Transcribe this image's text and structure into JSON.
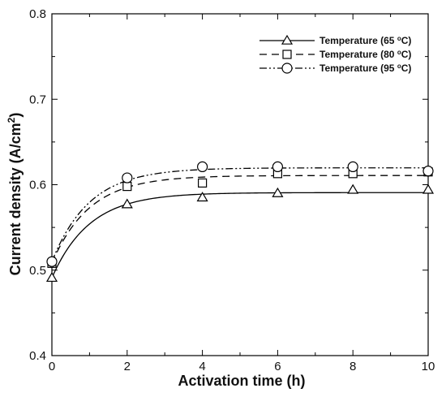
{
  "chart_data": {
    "type": "line",
    "title": "",
    "xlabel": "Activation time (h)",
    "ylabel": "Current density (A/cm",
    "ylabel_sup": "2",
    "ylabel_suffix": ")",
    "xlim": [
      0,
      10
    ],
    "ylim": [
      0.4,
      0.8
    ],
    "x_ticks": [
      "0",
      "2",
      "4",
      "6",
      "8",
      "10"
    ],
    "y_ticks": [
      "0.4",
      "0.5",
      "0.6",
      "0.7",
      "0.8"
    ],
    "grid": false,
    "legend_position": "top-right",
    "x": [
      0,
      2,
      4,
      6,
      8,
      10
    ],
    "series": [
      {
        "name": "Temperature (65 °C)",
        "legend_prefix": "Temperature (65 ",
        "legend_sup": "o",
        "legend_suffix": "C)",
        "marker": "triangle",
        "line_style": "solid",
        "values": [
          0.491,
          0.577,
          0.585,
          0.59,
          0.594,
          0.594
        ]
      },
      {
        "name": "Temperature (80 °C)",
        "legend_prefix": "Temperature (80 ",
        "legend_sup": "o",
        "legend_suffix": "C)",
        "marker": "square",
        "line_style": "dashed",
        "values": [
          0.508,
          0.598,
          0.602,
          0.613,
          0.613,
          0.615
        ]
      },
      {
        "name": "Temperature (95 °C)",
        "legend_prefix": "Temperature (95 ",
        "legend_sup": "o",
        "legend_suffix": "C)",
        "marker": "circle",
        "line_style": "dash-dot-dot",
        "values": [
          0.51,
          0.608,
          0.621,
          0.621,
          0.621,
          0.616
        ]
      }
    ],
    "colors": {
      "line": "#000000",
      "marker_fill": "#ffffff"
    }
  }
}
